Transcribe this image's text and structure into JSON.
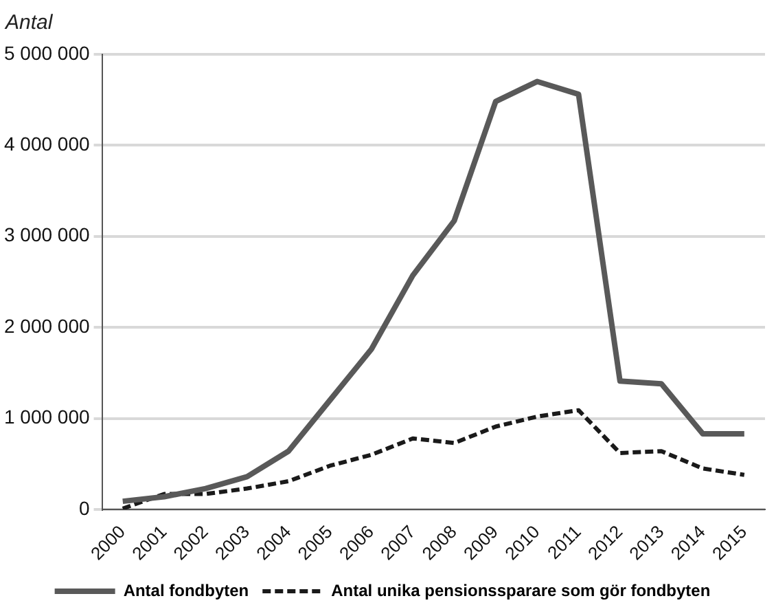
{
  "chart_data": {
    "type": "line",
    "ylabel": "Antal",
    "categories": [
      "2000",
      "2001",
      "2002",
      "2003",
      "2004",
      "2005",
      "2006",
      "2007",
      "2008",
      "2009",
      "2010",
      "2011",
      "2012",
      "2013",
      "2014",
      "2015"
    ],
    "series": [
      {
        "name": "Antal fondbyten",
        "color": "#595959",
        "line_style": "solid",
        "values": [
          90000,
          140000,
          230000,
          360000,
          640000,
          1200000,
          1760000,
          2570000,
          3170000,
          4480000,
          4700000,
          4560000,
          1410000,
          1380000,
          830000,
          830000
        ]
      },
      {
        "name": "Antal unika pensionssparare som gör fondbyten",
        "color": "#1a1a1a",
        "line_style": "dashed",
        "values": [
          10000,
          170000,
          170000,
          230000,
          310000,
          480000,
          600000,
          780000,
          730000,
          910000,
          1020000,
          1090000,
          620000,
          640000,
          450000,
          380000
        ]
      }
    ],
    "ylim": [
      0,
      5000000
    ],
    "yticks": [
      0,
      1000000,
      2000000,
      3000000,
      4000000,
      5000000
    ],
    "grid": "y",
    "legend": "bottom",
    "marker": "none"
  }
}
